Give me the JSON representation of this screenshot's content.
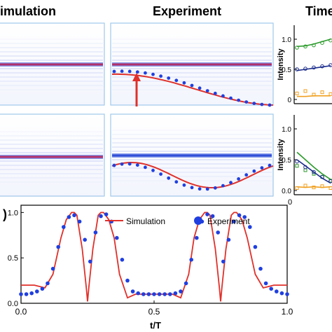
{
  "headers": {
    "simulation": "imulation",
    "experiment": "Experiment",
    "time": "Time"
  },
  "panel_label": ")",
  "colors": {
    "simulation_line": "#e0302a",
    "experiment_dots": "#1f3fe0",
    "band_red": "#b0306a",
    "band_blue": "#3050d8",
    "panel_border": "#9ec9ea",
    "green": "#2a9a2a",
    "navy": "#1c2d8c",
    "orange": "#f0a020"
  },
  "chart_data": [
    {
      "type": "line",
      "name": "bottom-main",
      "legend": {
        "placement": "top-center",
        "entries": [
          "Simulation",
          "Experiment"
        ]
      },
      "xlabel": "t/T",
      "ylabel": "",
      "xlim": [
        0,
        1
      ],
      "ylim": [
        0,
        1.08
      ],
      "xticks": [
        "0.0",
        "0.5",
        "1.0"
      ],
      "yticks": [
        "0.0",
        "0.5",
        "1.0"
      ],
      "series": [
        {
          "name": "Simulation",
          "style": "line",
          "x": [
            0,
            0.05,
            0.09,
            0.12,
            0.15,
            0.17,
            0.19,
            0.2,
            0.21,
            0.23,
            0.245,
            0.25,
            0.255,
            0.27,
            0.29,
            0.3,
            0.31,
            0.33,
            0.35,
            0.37,
            0.4,
            0.43,
            0.5,
            0.57,
            0.6,
            0.63,
            0.65,
            0.67,
            0.69,
            0.7,
            0.71,
            0.73,
            0.745,
            0.75,
            0.755,
            0.77,
            0.79,
            0.8,
            0.81,
            0.83,
            0.85,
            0.88,
            0.91,
            0.95,
            1.0
          ],
          "y": [
            0.2,
            0.2,
            0.17,
            0.32,
            0.72,
            0.92,
            1.0,
            1.0,
            0.97,
            0.6,
            0.18,
            0.02,
            0.18,
            0.6,
            0.97,
            1.0,
            1.0,
            0.92,
            0.72,
            0.32,
            0.06,
            0.1,
            0.1,
            0.1,
            0.06,
            0.32,
            0.72,
            0.92,
            1.0,
            1.0,
            0.97,
            0.6,
            0.18,
            0.02,
            0.18,
            0.6,
            0.97,
            1.0,
            1.0,
            0.92,
            0.72,
            0.32,
            0.17,
            0.2,
            0.2
          ]
        },
        {
          "name": "Experiment",
          "style": "dots",
          "x": [
            0.0,
            0.02,
            0.04,
            0.06,
            0.08,
            0.1,
            0.12,
            0.14,
            0.16,
            0.18,
            0.2,
            0.22,
            0.24,
            0.26,
            0.28,
            0.3,
            0.32,
            0.34,
            0.36,
            0.38,
            0.4,
            0.42,
            0.44,
            0.46,
            0.48,
            0.5,
            0.52,
            0.54,
            0.56,
            0.58,
            0.6,
            0.62,
            0.64,
            0.66,
            0.68,
            0.7,
            0.72,
            0.74,
            0.76,
            0.78,
            0.8,
            0.82,
            0.84,
            0.86,
            0.88,
            0.9,
            0.92,
            0.94,
            0.96,
            0.98,
            1.0
          ],
          "y": [
            0.1,
            0.1,
            0.11,
            0.13,
            0.16,
            0.22,
            0.38,
            0.62,
            0.84,
            0.95,
            0.97,
            0.9,
            0.7,
            0.46,
            0.78,
            0.96,
            0.98,
            0.9,
            0.72,
            0.48,
            0.25,
            0.13,
            0.11,
            0.1,
            0.1,
            0.1,
            0.1,
            0.1,
            0.1,
            0.11,
            0.13,
            0.22,
            0.48,
            0.72,
            0.9,
            0.98,
            0.96,
            0.78,
            0.46,
            0.7,
            0.9,
            0.97,
            0.95,
            0.84,
            0.62,
            0.38,
            0.22,
            0.16,
            0.13,
            0.11,
            0.1
          ]
        }
      ]
    },
    {
      "type": "scatter",
      "name": "right-top",
      "ylabel": "Intensity",
      "yticks": [
        "1.0",
        "0.5",
        "0"
      ],
      "series": [
        {
          "marker": "line",
          "color": "green",
          "y": [
            0.88,
            0.89,
            0.92,
            0.96,
            1.0
          ]
        },
        {
          "marker": "circle",
          "color": "green",
          "y": [
            0.86,
            0.88,
            0.9,
            0.94,
            0.98
          ]
        },
        {
          "marker": "line",
          "color": "navy",
          "y": [
            0.48,
            0.5,
            0.52,
            0.54,
            0.56
          ]
        },
        {
          "marker": "circle",
          "color": "navy",
          "y": [
            0.5,
            0.51,
            0.53,
            0.55,
            0.57
          ]
        },
        {
          "marker": "line",
          "color": "orange",
          "y": [
            0.05,
            0.05,
            0.06,
            0.06,
            0.06
          ]
        },
        {
          "marker": "square",
          "color": "orange",
          "y": [
            0.1,
            0.14,
            0.08,
            0.12,
            0.09
          ]
        }
      ]
    },
    {
      "type": "scatter",
      "name": "right-bottom",
      "ylabel": "Intensity",
      "xticks": [
        "0"
      ],
      "yticks": [
        "1.0",
        "0.5",
        "0.0"
      ],
      "series": [
        {
          "marker": "line",
          "color": "green",
          "y": [
            0.62,
            0.5,
            0.38,
            0.27,
            0.18
          ]
        },
        {
          "marker": "square",
          "color": "green",
          "y": [
            0.4,
            0.33,
            0.27,
            0.22,
            0.16
          ]
        },
        {
          "marker": "line",
          "color": "navy",
          "y": [
            0.5,
            0.4,
            0.3,
            0.2,
            0.12
          ]
        },
        {
          "marker": "circle",
          "color": "navy",
          "y": [
            0.47,
            0.38,
            0.3,
            0.22,
            0.15
          ]
        },
        {
          "marker": "line",
          "color": "orange",
          "y": [
            0.06,
            0.05,
            0.06,
            0.05,
            0.06
          ]
        },
        {
          "marker": "square",
          "color": "orange",
          "y": [
            0.04,
            0.08,
            0.05,
            0.07,
            0.04
          ]
        }
      ]
    }
  ]
}
